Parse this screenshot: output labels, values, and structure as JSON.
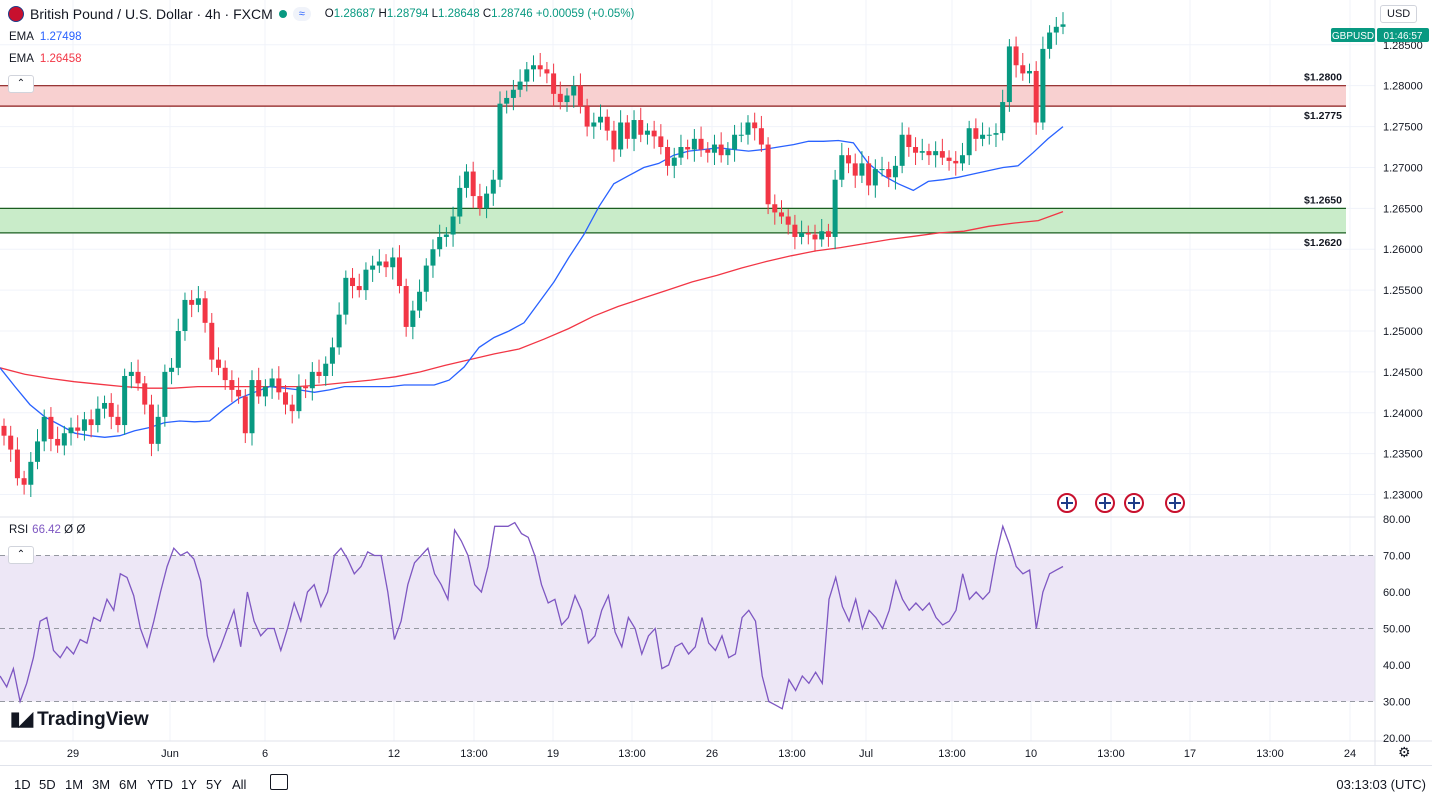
{
  "header": {
    "title": "British Pound / U.S. Dollar · 4h · FXCM",
    "open_label": "O",
    "open": "1.28687",
    "high_label": "H",
    "high": "1.28794",
    "low_label": "L",
    "low": "1.28648",
    "close_label": "C",
    "close": "1.28746",
    "change": "+0.00059 (+0.05%)",
    "currency_button": "USD"
  },
  "indicators": {
    "ema1_label": "EMA",
    "ema1_value": "1.27498",
    "ema1_color": "#2962ff",
    "ema2_label": "EMA",
    "ema2_value": "1.26458",
    "ema2_color": "#f23645",
    "rsi_label": "RSI",
    "rsi_value": "66.42",
    "rsi_extra1": "Ø",
    "rsi_extra2": "Ø"
  },
  "price_tag": {
    "symbol": "GBPUSD",
    "time": "01:46:57"
  },
  "branding": "TradingView",
  "bottom_bar": {
    "timeframes": [
      "1D",
      "5D",
      "1M",
      "3M",
      "6M",
      "YTD",
      "1Y",
      "5Y",
      "All"
    ],
    "clock": "03:13:03 (UTC)"
  },
  "colors": {
    "up": "#089981",
    "down": "#f23645",
    "resistance": "#f8d0d0",
    "support": "#c9ecc9",
    "rsi_line": "#7e57c2",
    "rsi_band": "#ede7f6"
  },
  "chart_data": {
    "type": "candlestick",
    "ylim": [
      1.2275,
      1.2895
    ],
    "price_ticks": [
      "1.28500",
      "1.28000",
      "1.27500",
      "1.27000",
      "1.26500",
      "1.26000",
      "1.25500",
      "1.25000",
      "1.24500",
      "1.24000",
      "1.23500",
      "1.23000"
    ],
    "rsi_ticks": [
      "80.00",
      "70.00",
      "60.00",
      "50.00",
      "40.00",
      "30.00",
      "20.00"
    ],
    "x_labels": [
      "29",
      "Jun",
      "6",
      "12",
      "13:00",
      "19",
      "13:00",
      "26",
      "13:00",
      "Jul",
      "13:00",
      "10",
      "13:00",
      "17",
      "13:00",
      "24"
    ],
    "zones": [
      {
        "type": "resistance",
        "upper": 1.28,
        "lower": 1.2775,
        "upper_label": "$1.2800",
        "lower_label": "$1.2775"
      },
      {
        "type": "support",
        "upper": 1.265,
        "lower": 1.262,
        "upper_label": "$1.2650",
        "lower_label": "$1.2620"
      }
    ],
    "closes": [
      1.2372,
      1.2355,
      1.232,
      1.2312,
      1.234,
      1.2365,
      1.2395,
      1.2368,
      1.236,
      1.2375,
      1.2382,
      1.2378,
      1.2392,
      1.2385,
      1.2405,
      1.2412,
      1.2395,
      1.2385,
      1.2445,
      1.245,
      1.2436,
      1.241,
      1.2362,
      1.2395,
      1.245,
      1.2455,
      1.25,
      1.2538,
      1.2532,
      1.254,
      1.251,
      1.2465,
      1.2455,
      1.244,
      1.2428,
      1.242,
      1.2375,
      1.244,
      1.242,
      1.2432,
      1.2442,
      1.2425,
      1.241,
      1.2402,
      1.2432,
      1.243,
      1.245,
      1.2445,
      1.246,
      1.248,
      1.252,
      1.2565,
      1.2555,
      1.255,
      1.2575,
      1.258,
      1.2585,
      1.2578,
      1.259,
      1.2555,
      1.2505,
      1.2525,
      1.2548,
      1.258,
      1.26,
      1.2615,
      1.2618,
      1.264,
      1.2675,
      1.2695,
      1.2665,
      1.265,
      1.2668,
      1.2685,
      1.2778,
      1.2785,
      1.2795,
      1.2805,
      1.282,
      1.2825,
      1.282,
      1.2815,
      1.279,
      1.278,
      1.2788,
      1.28,
      1.2775,
      1.275,
      1.2755,
      1.2762,
      1.2745,
      1.2722,
      1.2755,
      1.2735,
      1.2758,
      1.274,
      1.2745,
      1.2738,
      1.2725,
      1.2702,
      1.2712,
      1.2725,
      1.2722,
      1.2735,
      1.2722,
      1.2718,
      1.2728,
      1.2715,
      1.2722,
      1.274,
      1.274,
      1.2755,
      1.2748,
      1.2728,
      1.2655,
      1.2645,
      1.264,
      1.263,
      1.2615,
      1.262,
      1.2618,
      1.2612,
      1.2622,
      1.2615,
      1.2685,
      1.2715,
      1.2705,
      1.269,
      1.2705,
      1.2678,
      1.2698,
      1.2698,
      1.2688,
      1.2702,
      1.274,
      1.2725,
      1.2718,
      1.272,
      1.2715,
      1.272,
      1.2712,
      1.2708,
      1.2705,
      1.2715,
      1.2748,
      1.2735,
      1.274,
      1.274,
      1.2742,
      1.278,
      1.2848,
      1.2825,
      1.2815,
      1.2818,
      1.2755,
      1.2845,
      1.2865,
      1.2872,
      1.2875
    ],
    "ema_fast": [
      1.2455,
      1.2432,
      1.241,
      1.2395,
      1.2385,
      1.2375,
      1.2372,
      1.237,
      1.2372,
      1.2378,
      1.2382,
      1.2388,
      1.239,
      1.2389,
      1.239,
      1.2405,
      1.2418,
      1.2425,
      1.2432,
      1.243,
      1.2428,
      1.2425,
      1.2428,
      1.2432,
      1.2432,
      1.2432,
      1.2432,
      1.2434,
      1.2434,
      1.2434,
      1.244,
      1.2456,
      1.248,
      1.2492,
      1.25,
      1.251,
      1.2535,
      1.256,
      1.259,
      1.2618,
      1.2652,
      1.268,
      1.269,
      1.27,
      1.2705,
      1.2715,
      1.272,
      1.2722,
      1.2724,
      1.2722,
      1.272,
      1.2722,
      1.2725,
      1.2728,
      1.2732,
      1.2732,
      1.2733,
      1.273,
      1.2705,
      1.269,
      1.268,
      1.2672,
      1.2683,
      1.2685,
      1.2688,
      1.2692,
      1.2696,
      1.27,
      1.2702,
      1.2718,
      1.2735,
      1.275
    ],
    "ema_slow": [
      1.2455,
      1.2447,
      1.2442,
      1.2438,
      1.2435,
      1.2432,
      1.243,
      1.243,
      1.2432,
      1.2432,
      1.2432,
      1.2432,
      1.2432,
      1.2434,
      1.2437,
      1.244,
      1.2444,
      1.245,
      1.2458,
      1.2465,
      1.2472,
      1.2478,
      1.249,
      1.2503,
      1.2518,
      1.253,
      1.254,
      1.255,
      1.256,
      1.2568,
      1.2577,
      1.2585,
      1.2592,
      1.2598,
      1.2602,
      1.2607,
      1.2612,
      1.2616,
      1.262,
      1.2622,
      1.2628,
      1.2632,
      1.2635,
      1.2646
    ],
    "rsi": [
      37,
      34,
      39,
      30,
      35,
      42,
      52,
      53,
      44,
      42,
      45,
      43,
      47,
      46,
      53,
      52,
      58,
      55,
      65,
      64,
      59,
      50,
      45,
      52,
      60,
      67,
      72,
      70,
      71,
      69,
      63,
      48,
      41,
      45,
      50,
      55,
      45,
      60,
      52,
      48,
      50,
      50,
      44,
      50,
      57,
      52,
      60,
      62,
      56,
      60,
      70,
      72,
      69,
      65,
      67,
      71,
      70,
      70,
      60,
      47,
      52,
      62,
      68,
      70,
      72,
      65,
      62,
      58,
      77,
      74,
      70,
      62,
      60,
      67,
      78,
      78,
      78,
      79,
      76,
      75,
      70,
      62,
      57,
      58,
      51,
      53,
      59,
      55,
      46,
      48,
      55,
      59,
      49,
      45,
      53,
      50,
      43,
      48,
      50,
      39,
      40,
      45,
      46,
      43,
      45,
      53,
      46,
      44,
      48,
      42,
      43,
      53,
      55,
      52,
      37,
      30,
      29,
      28,
      36,
      33,
      37,
      35,
      38,
      35,
      58,
      64,
      56,
      52,
      58,
      50,
      55,
      53,
      50,
      55,
      63,
      58,
      55,
      57,
      55,
      57,
      53,
      51,
      52,
      55,
      65,
      58,
      60,
      58,
      60,
      70,
      78,
      73,
      67,
      65,
      66,
      50,
      60,
      65,
      66,
      67
    ]
  }
}
